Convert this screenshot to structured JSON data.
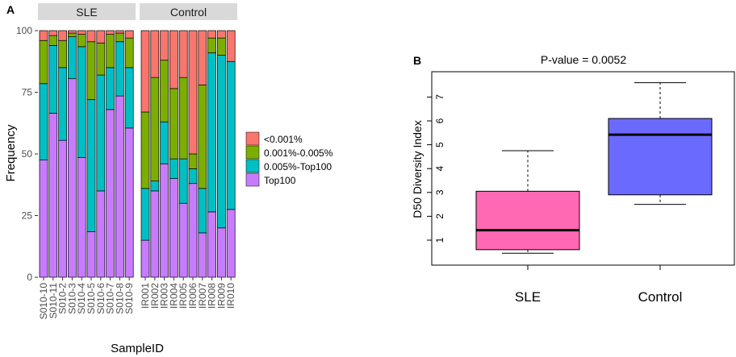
{
  "panel_a": {
    "label": "A",
    "facets": [
      "SLE",
      "Control"
    ],
    "xlabel": "SampleID",
    "ylabel": "Frequency",
    "yticks": [
      "0",
      "25",
      "50",
      "75",
      "100"
    ],
    "legend": [
      "<0.001%",
      "0.001%-0.005%",
      "0.005%-Top100",
      "Top100"
    ]
  },
  "panel_b": {
    "label": "B",
    "title": "P-value = 0.0052",
    "ylabel": "D50  Diversity  Index",
    "yticks": [
      "1",
      "2",
      "3",
      "4",
      "5",
      "6",
      "7"
    ],
    "xticks": [
      "SLE",
      "Control"
    ]
  },
  "colors": {
    "lt0001": "#F8766D",
    "c0001_0005": "#7CAE00",
    "c0005_top100": "#00BFC4",
    "top100": "#C77CFF",
    "strip": "#D9D9D9",
    "box_sle": "#FF69B4",
    "box_control": "#6A6AFF"
  },
  "chart_data": [
    {
      "type": "bar",
      "stacked": true,
      "title": "",
      "xlabel": "SampleID",
      "ylabel": "Frequency",
      "ylim": [
        0,
        100
      ],
      "facets": [
        {
          "name": "SLE",
          "categories": [
            "S010-10",
            "S010-11",
            "S010-2",
            "S010-3",
            "S010-4",
            "S010-5",
            "S010-6",
            "S010-7",
            "S010-8",
            "S010-9"
          ],
          "series": [
            {
              "name": "Top100",
              "values": [
                47.5,
                66.5,
                55.5,
                80.5,
                48.5,
                18.5,
                35,
                68,
                73.5,
                60.5
              ]
            },
            {
              "name": "0.005%-Top100",
              "values": [
                31,
                27.5,
                29.5,
                17,
                45,
                53.5,
                47,
                17,
                22,
                24.5
              ]
            },
            {
              "name": "0.001%-0.005%",
              "values": [
                17.5,
                4,
                11,
                1.5,
                5,
                23.5,
                13,
                13.5,
                3.5,
                12
              ]
            },
            {
              "name": "<0.001%",
              "values": [
                4,
                2,
                4,
                1,
                1.5,
                4.5,
                5,
                1.5,
                1,
                3
              ]
            }
          ]
        },
        {
          "name": "Control",
          "categories": [
            "IR001",
            "IR002",
            "IR003",
            "IR004",
            "IR005",
            "IR006",
            "IR007",
            "IR008",
            "IR009",
            "IR010"
          ],
          "series": [
            {
              "name": "Top100",
              "values": [
                15,
                35,
                46,
                40,
                30,
                38,
                18,
                26.5,
                20,
                27.5
              ]
            },
            {
              "name": "0.005%-Top100",
              "values": [
                21,
                4,
                17,
                8,
                18,
                6,
                18,
                64.5,
                70,
                60
              ]
            },
            {
              "name": "0.001%-0.005%",
              "values": [
                31,
                42,
                25,
                28.5,
                33,
                6,
                42,
                6,
                7,
                0
              ]
            },
            {
              "name": "<0.001%",
              "values": [
                33,
                19,
                12,
                23.5,
                19,
                50,
                22,
                3,
                3,
                12.5
              ]
            }
          ]
        }
      ],
      "legend_position": "right"
    },
    {
      "type": "box",
      "title": "P-value = 0.0052",
      "xlabel": "",
      "ylabel": "D50  Diversity  Index",
      "ylim": [
        0.3,
        8.1
      ],
      "categories": [
        "SLE",
        "Control"
      ],
      "boxes": [
        {
          "name": "SLE",
          "whisker_low": 0.45,
          "q1": 0.6,
          "median": 1.42,
          "q3": 3.05,
          "whisker_high": 4.75
        },
        {
          "name": "Control",
          "whisker_low": 2.5,
          "q1": 2.9,
          "median": 5.42,
          "q3": 6.1,
          "whisker_high": 7.6
        }
      ]
    }
  ]
}
